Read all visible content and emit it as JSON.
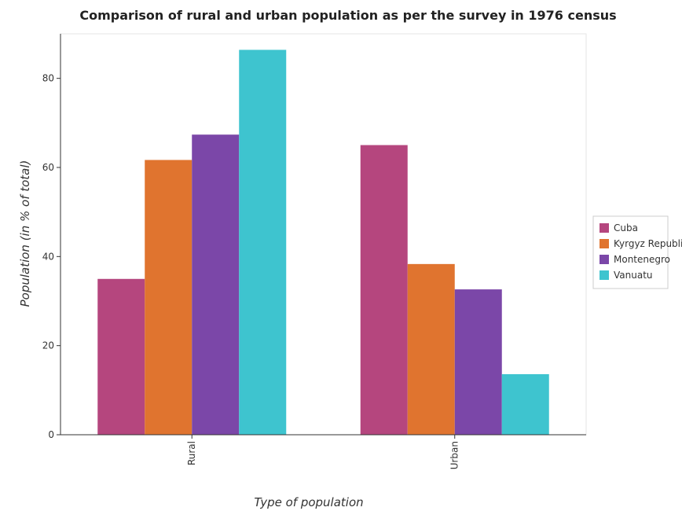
{
  "chart_data": {
    "type": "bar",
    "title": "Comparison of rural and urban population as per the survey in 1976 census",
    "xlabel": "Type of population",
    "ylabel": "Population (in % of total)",
    "categories": [
      "Rural",
      "Urban"
    ],
    "ylim": [
      0,
      90
    ],
    "yticks": [
      0,
      20,
      40,
      60,
      80
    ],
    "grid": false,
    "legend_position": "right",
    "series": [
      {
        "name": "Cuba",
        "color": "#b5467e",
        "values": [
          34.98,
          65.02
        ]
      },
      {
        "name": "Kyrgyz Republic",
        "color": "#e0742f",
        "values": [
          61.68,
          38.32
        ]
      },
      {
        "name": "Montenegro",
        "color": "#7b47a8",
        "values": [
          67.37,
          32.63
        ]
      },
      {
        "name": "Vanuatu",
        "color": "#3ec4cf",
        "values": [
          86.4,
          13.6
        ]
      }
    ]
  }
}
